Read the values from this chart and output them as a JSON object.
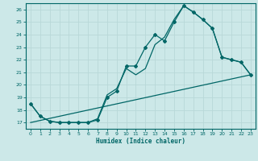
{
  "xlabel": "Humidex (Indice chaleur)",
  "background_color": "#cce8e8",
  "grid_color": "#b8d8d8",
  "line_color": "#006666",
  "xlim": [
    -0.5,
    23.5
  ],
  "ylim": [
    16.5,
    26.5
  ],
  "xticks": [
    0,
    1,
    2,
    3,
    4,
    5,
    6,
    7,
    8,
    9,
    10,
    11,
    12,
    13,
    14,
    15,
    16,
    17,
    18,
    19,
    20,
    21,
    22,
    23
  ],
  "yticks": [
    17,
    18,
    19,
    20,
    21,
    22,
    23,
    24,
    25,
    26
  ],
  "line1_x": [
    0,
    1,
    2,
    3,
    4,
    5,
    6,
    7,
    8,
    9,
    10,
    11,
    12,
    13,
    14,
    15,
    16,
    17,
    18,
    19,
    20,
    21,
    22,
    23
  ],
  "line1_y": [
    18.5,
    17.5,
    17.1,
    17.0,
    17.0,
    17.0,
    17.0,
    17.2,
    19.0,
    19.5,
    21.5,
    21.5,
    23.0,
    24.0,
    23.5,
    25.0,
    26.3,
    25.8,
    25.2,
    24.5,
    22.2,
    22.0,
    21.8,
    20.8
  ],
  "line2_x": [
    0,
    1,
    2,
    3,
    4,
    5,
    6,
    7,
    8,
    9,
    10,
    11,
    12,
    13,
    14,
    15,
    16,
    17,
    18,
    19,
    20,
    21,
    22,
    23
  ],
  "line2_y": [
    18.5,
    17.5,
    17.1,
    17.0,
    17.0,
    17.0,
    17.0,
    17.3,
    19.2,
    19.7,
    21.3,
    20.8,
    21.3,
    23.2,
    23.8,
    25.2,
    26.3,
    25.8,
    25.2,
    24.5,
    22.2,
    22.0,
    21.8,
    20.8
  ],
  "line3_x": [
    0,
    23
  ],
  "line3_y": [
    17.0,
    20.8
  ]
}
